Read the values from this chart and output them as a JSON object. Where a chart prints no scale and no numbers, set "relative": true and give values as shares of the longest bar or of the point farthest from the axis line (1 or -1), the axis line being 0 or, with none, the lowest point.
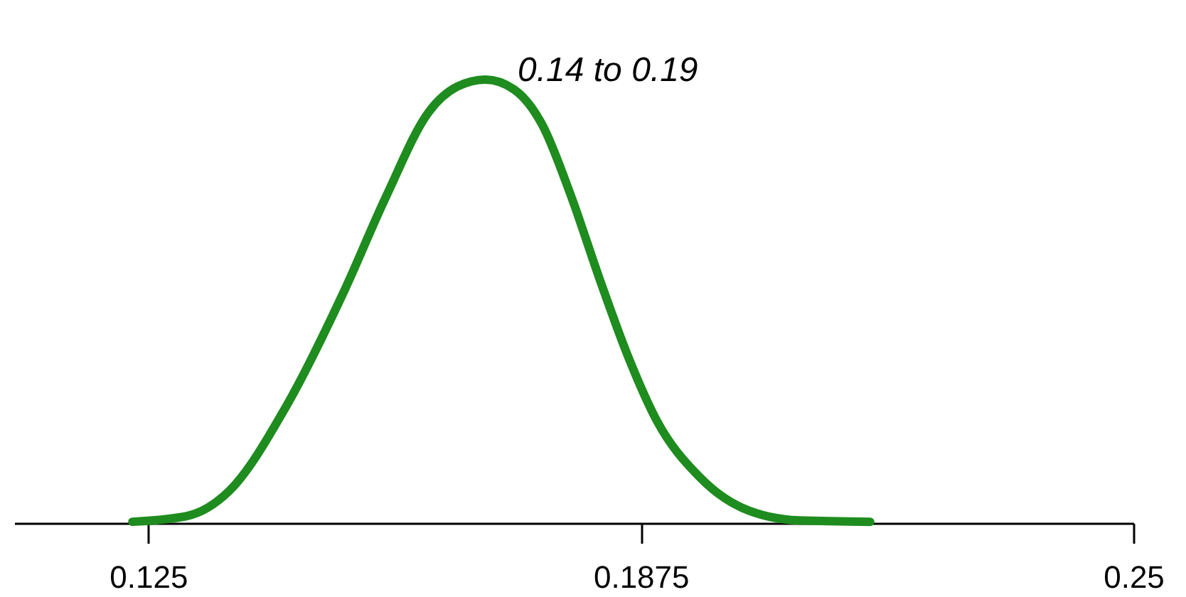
{
  "chart_data": {
    "type": "line",
    "relative": true,
    "annotations": [
      "0.14 to 0.19"
    ],
    "xlim": [
      0.108,
      0.25
    ],
    "xticks": [
      0.125,
      0.1875,
      0.25
    ],
    "grid": false,
    "marker": "none",
    "line_style": "solid",
    "series": [
      {
        "color": "#1e8c1e",
        "x": [
          0.123,
          0.1299,
          0.1353,
          0.1425,
          0.1497,
          0.1552,
          0.1606,
          0.1642,
          0.1678,
          0.1714,
          0.175,
          0.1786,
          0.1823,
          0.1859,
          0.1895,
          0.1949,
          0.2003,
          0.2076,
          0.2166
        ],
        "values": [
          0.003,
          0.016,
          0.073,
          0.263,
          0.517,
          0.737,
          0.927,
          0.984,
          1,
          0.978,
          0.898,
          0.74,
          0.549,
          0.375,
          0.232,
          0.105,
          0.035,
          0.006,
          0.003
        ]
      }
    ]
  }
}
